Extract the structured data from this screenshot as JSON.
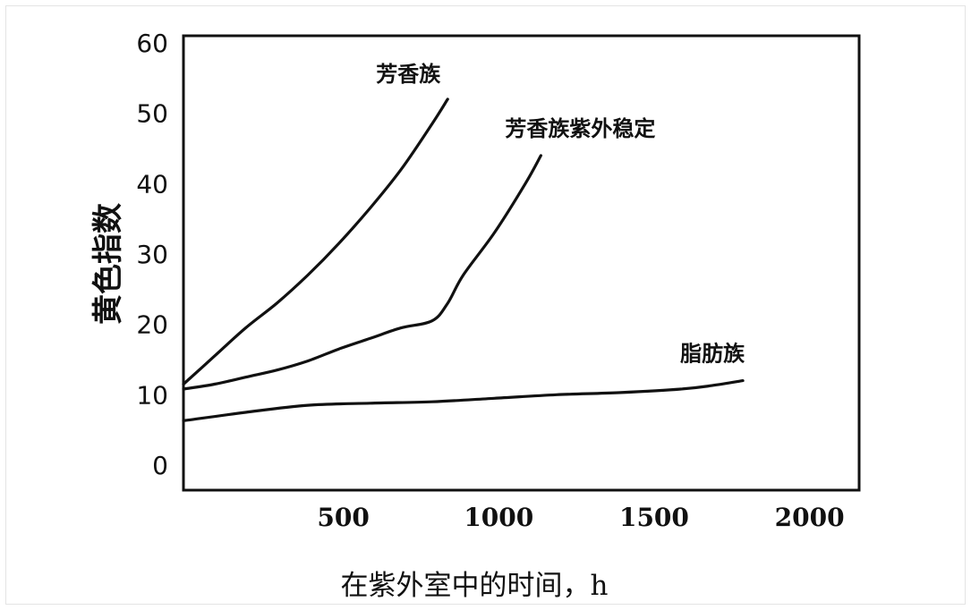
{
  "chart_data": {
    "type": "line",
    "title": "",
    "xlabel": "在紫外室中的时间，h",
    "ylabel": "黄色指数",
    "xlim": [
      0,
      2000
    ],
    "ylim": [
      0,
      60
    ],
    "x_tick_labels": [
      "500",
      "1000",
      "1500",
      "2000"
    ],
    "x_ticks": [
      500,
      1000,
      1500,
      2000
    ],
    "y_tick_labels": [
      "0",
      "10",
      "20",
      "30",
      "40",
      "50",
      "60"
    ],
    "y_ticks": [
      0,
      10,
      20,
      30,
      40,
      50,
      60
    ],
    "grid": false,
    "legend": "none (series labelled inline)",
    "series": [
      {
        "name": "芳香族",
        "x": [
          0,
          100,
          200,
          300,
          400,
          500,
          600,
          700,
          800,
          850
        ],
        "y": [
          11.5,
          15.5,
          19.5,
          23,
          27,
          31.5,
          36.5,
          42,
          48.5,
          52
        ]
      },
      {
        "name": "芳香族紫外稳定",
        "x": [
          0,
          100,
          200,
          300,
          400,
          500,
          600,
          700,
          800,
          850,
          900,
          1000,
          1100,
          1150
        ],
        "y": [
          10.8,
          11.5,
          12.5,
          13.5,
          14.8,
          16.5,
          18,
          19.5,
          20.5,
          23,
          27,
          33,
          40,
          44
        ]
      },
      {
        "name": "脂肪族",
        "x": [
          0,
          200,
          400,
          600,
          800,
          1000,
          1200,
          1400,
          1600,
          1700,
          1800
        ],
        "y": [
          6.3,
          7.5,
          8.5,
          8.8,
          9,
          9.5,
          10,
          10.3,
          10.8,
          11.3,
          12
        ]
      }
    ],
    "line_color": "#111111"
  }
}
